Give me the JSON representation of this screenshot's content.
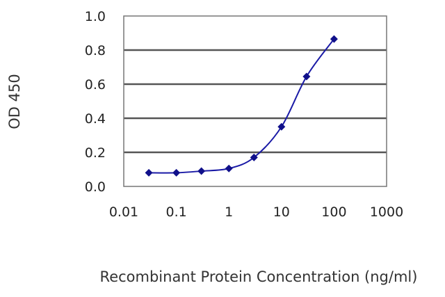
{
  "chart_data": {
    "type": "line",
    "title": "",
    "xlabel": "Recombinant Protein Concentration (ng/ml)",
    "ylabel": "OD 450",
    "x_scale": "log",
    "xlim": [
      0.01,
      1000
    ],
    "ylim": [
      0,
      1.0
    ],
    "x_ticks": [
      "0.01",
      "0.1",
      "1",
      "10",
      "100",
      "1000"
    ],
    "y_ticks": [
      "0.0",
      "0.2",
      "0.4",
      "0.6",
      "0.8",
      "1.0"
    ],
    "grid": "horizontal",
    "legend": "none",
    "series": [
      {
        "x": [
          0.03,
          0.1,
          0.3,
          1,
          3,
          10,
          30,
          100
        ],
        "y": [
          0.08,
          0.08,
          0.09,
          0.105,
          0.17,
          0.35,
          0.645,
          0.865
        ]
      }
    ],
    "colors": {
      "series": "#1a1aa6",
      "marker": "#10108a",
      "grid": "#555555"
    }
  }
}
